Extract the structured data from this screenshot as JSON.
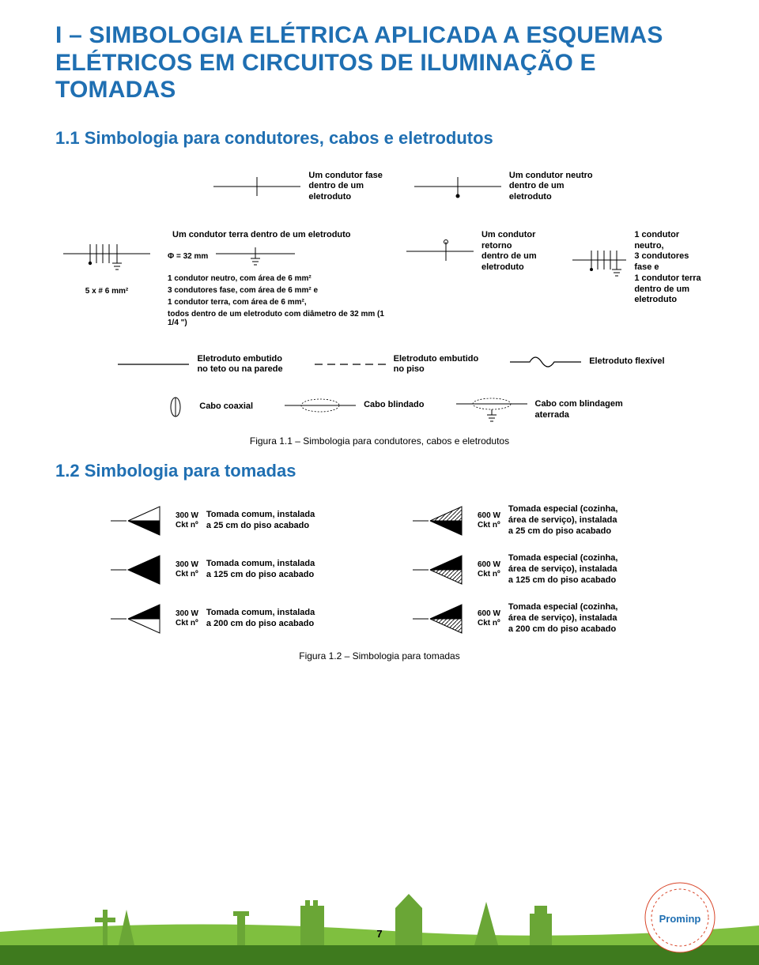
{
  "colors": {
    "heading": "#1f6fb2",
    "black": "#000000",
    "grassDark": "#3e7a1e",
    "grassLight": "#7fbf3f",
    "white": "#ffffff"
  },
  "title": "I – SIMBOLOGIA ELÉTRICA APLICADA A ESQUEMAS ELÉTRICOS EM CIRCUITOS DE ILUMINAÇÃO E TOMADAS",
  "section1": {
    "heading": "1.1 Simbologia para condutores, cabos e eletrodutos",
    "rowA": {
      "fase": "Um condutor fase\ndentro de um\neletroduto",
      "neutro": "Um condutor neutro\ndentro de um\neletroduto"
    },
    "rowB": {
      "leftLabel": "5 x # 6 mm²",
      "phi": "Φ = 32 mm",
      "terra": "Um condutor terra\ndentro de um\neletroduto",
      "retorno": "Um condutor retorno\ndentro de um\neletroduto",
      "right": "1 condutor neutro,\n3 condutores fase e\n1 condutor terra\ndentro de um\neletroduto",
      "bottom1": "1 condutor neutro, com área de 6 mm²",
      "bottom2": "3 condutores fase, com área de 6 mm² e",
      "bottom3": "1 condutor terra, com área de 6 mm²,",
      "bottom4": "todos dentro de um eletroduto com diâmetro de 32 mm (1 1/4 \")"
    },
    "rowC": {
      "teto": "Eletroduto embutido\nno teto ou na parede",
      "piso": "Eletroduto embutido\nno piso",
      "flex": "Eletroduto flexível"
    },
    "rowD": {
      "coax": "Cabo coaxial",
      "blind": "Cabo blindado",
      "blind_at": "Cabo com blindagem\naterrada"
    },
    "caption": "Figura 1.1 – Simbologia para condutores, cabos e eletrodutos"
  },
  "section2": {
    "heading": "1.2 Simbologia para tomadas",
    "rows": [
      {
        "left_w": "300 W",
        "left_ckt": "Ckt nº",
        "left_desc": "Tomada comum, instalada\na 25 cm do piso acabado",
        "right_w": "600 W",
        "right_ckt": "Ckt nº",
        "right_desc": "Tomada especial (cozinha,\nárea de serviço), instalada\na 25 cm do piso acabado",
        "variant": "low"
      },
      {
        "left_w": "300 W",
        "left_ckt": "Ckt nº",
        "left_desc": "Tomada comum, instalada\na 125 cm do piso acabado",
        "right_w": "600 W",
        "right_ckt": "Ckt nº",
        "right_desc": "Tomada especial (cozinha,\nárea de serviço), instalada\na 125 cm do piso acabado",
        "variant": "mid"
      },
      {
        "left_w": "300 W",
        "left_ckt": "Ckt nº",
        "left_desc": "Tomada comum, instalada\na 200 cm do piso acabado",
        "right_w": "600 W",
        "right_ckt": "Ckt nº",
        "right_desc": "Tomada especial (cozinha,\nárea de serviço), instalada\na 200 cm do piso acabado",
        "variant": "high"
      }
    ],
    "caption": "Figura 1.2 – Simbologia para tomadas"
  },
  "pageNumber": "7"
}
